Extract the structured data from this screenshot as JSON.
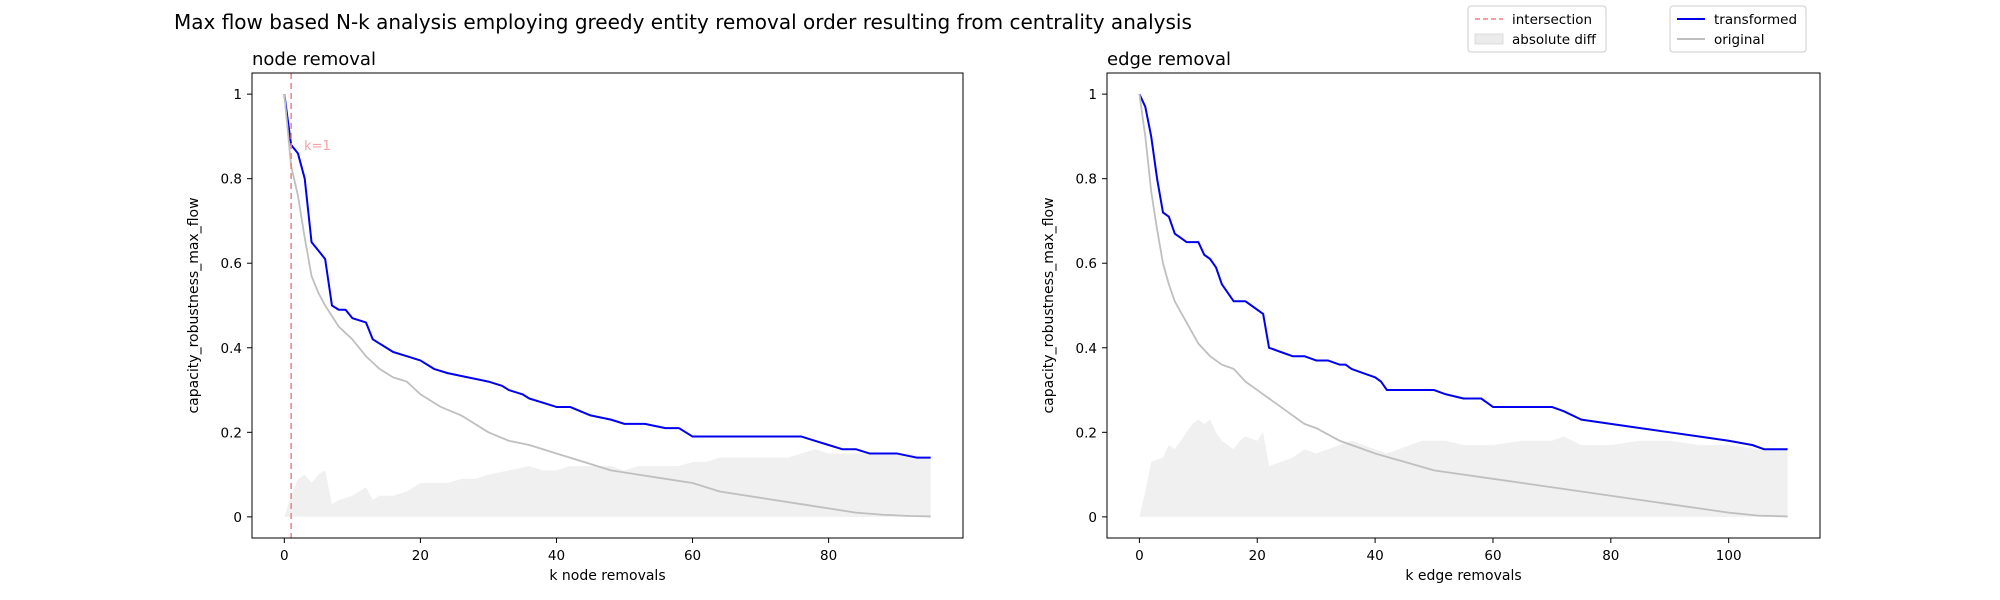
{
  "title": "Max flow based N-k analysis employing greedy entity removal order resulting from centrality analysis",
  "legend_left": {
    "placement": "top-center",
    "items": [
      {
        "label": "intersection",
        "style": "dashed-line",
        "color": "#f08080"
      },
      {
        "label": "absolute diff",
        "style": "patch",
        "color": "#ebebeb"
      }
    ]
  },
  "legend_right": {
    "placement": "top-right",
    "items": [
      {
        "label": "transformed",
        "style": "line",
        "color": "#0000ee"
      },
      {
        "label": "original",
        "style": "line",
        "color": "#bfbfbf"
      }
    ]
  },
  "colors": {
    "transformed": "#0000ee",
    "original": "#bfbfbf",
    "absolute_diff": "#f0f0f0",
    "intersection": "#f08080"
  },
  "chart_data": [
    {
      "type": "line",
      "title": "node removal",
      "xlabel": "k node removals",
      "ylabel": "capacity_robustness_max_flow",
      "xlim": [
        -4.75,
        99.75
      ],
      "ylim": [
        -0.05,
        1.05
      ],
      "xticks": [
        0,
        20,
        40,
        60,
        80
      ],
      "yticks": [
        0.0,
        0.2,
        0.4,
        0.6,
        0.8,
        1.0
      ],
      "grid": false,
      "annotation": {
        "text": "k=1",
        "x": 1
      },
      "series": [
        {
          "name": "transformed",
          "color": "#0000ee",
          "x": [
            0,
            1,
            2,
            3,
            4,
            5,
            6,
            7,
            8,
            9,
            10,
            12,
            13,
            14,
            16,
            18,
            20,
            22,
            24,
            27,
            30,
            32,
            33,
            35,
            36,
            38,
            40,
            42,
            45,
            48,
            50,
            53,
            56,
            58,
            59,
            60,
            63,
            65,
            70,
            73,
            76,
            78,
            80,
            82,
            84,
            86,
            90,
            93,
            95
          ],
          "y": [
            1.0,
            0.88,
            0.86,
            0.8,
            0.65,
            0.63,
            0.61,
            0.5,
            0.49,
            0.49,
            0.47,
            0.46,
            0.42,
            0.41,
            0.39,
            0.38,
            0.37,
            0.35,
            0.34,
            0.33,
            0.32,
            0.31,
            0.3,
            0.29,
            0.28,
            0.27,
            0.26,
            0.26,
            0.24,
            0.23,
            0.22,
            0.22,
            0.21,
            0.21,
            0.2,
            0.19,
            0.19,
            0.19,
            0.19,
            0.19,
            0.19,
            0.18,
            0.17,
            0.16,
            0.16,
            0.15,
            0.15,
            0.14,
            0.14
          ]
        },
        {
          "name": "original",
          "color": "#bfbfbf",
          "x": [
            0,
            1,
            2,
            3,
            4,
            5,
            6,
            8,
            10,
            12,
            14,
            16,
            18,
            20,
            23,
            26,
            30,
            33,
            36,
            40,
            44,
            48,
            52,
            56,
            60,
            64,
            68,
            72,
            76,
            80,
            84,
            88,
            92,
            95
          ],
          "y": [
            1.0,
            0.83,
            0.76,
            0.66,
            0.57,
            0.53,
            0.5,
            0.45,
            0.42,
            0.38,
            0.35,
            0.33,
            0.32,
            0.29,
            0.26,
            0.24,
            0.2,
            0.18,
            0.17,
            0.15,
            0.13,
            0.11,
            0.1,
            0.09,
            0.08,
            0.06,
            0.05,
            0.04,
            0.03,
            0.02,
            0.01,
            0.005,
            0.002,
            0.001
          ]
        }
      ],
      "absolute_diff": {
        "name": "absolute diff",
        "color": "#f0f0f0",
        "x": [
          0,
          1,
          2,
          3,
          4,
          5,
          6,
          7,
          8,
          10,
          12,
          13,
          14,
          16,
          18,
          20,
          22,
          24,
          26,
          28,
          30,
          33,
          36,
          38,
          40,
          42,
          44,
          46,
          48,
          50,
          52,
          54,
          56,
          58,
          60,
          62,
          64,
          66,
          68,
          70,
          72,
          74,
          76,
          78,
          80,
          82,
          84,
          86,
          88,
          90,
          92,
          94,
          95
        ],
        "y": [
          0.0,
          0.05,
          0.09,
          0.1,
          0.08,
          0.1,
          0.11,
          0.03,
          0.04,
          0.05,
          0.07,
          0.04,
          0.05,
          0.05,
          0.06,
          0.08,
          0.08,
          0.08,
          0.09,
          0.09,
          0.1,
          0.11,
          0.12,
          0.11,
          0.11,
          0.12,
          0.12,
          0.12,
          0.12,
          0.11,
          0.12,
          0.12,
          0.12,
          0.12,
          0.13,
          0.13,
          0.14,
          0.14,
          0.14,
          0.14,
          0.14,
          0.14,
          0.15,
          0.16,
          0.15,
          0.15,
          0.15,
          0.15,
          0.15,
          0.15,
          0.15,
          0.14,
          0.14
        ]
      }
    },
    {
      "type": "line",
      "title": "edge removal",
      "xlabel": "k edge removals",
      "ylabel": "capacity_robustness_max_flow",
      "xlim": [
        -5.5,
        115.5
      ],
      "ylim": [
        -0.05,
        1.05
      ],
      "xticks": [
        0,
        20,
        40,
        60,
        80,
        100
      ],
      "yticks": [
        0.0,
        0.2,
        0.4,
        0.6,
        0.8,
        1.0
      ],
      "grid": false,
      "series": [
        {
          "name": "transformed",
          "color": "#0000ee",
          "x": [
            0,
            1,
            2,
            3,
            4,
            5,
            6,
            7,
            8,
            10,
            11,
            12,
            13,
            14,
            16,
            18,
            19,
            21,
            22,
            24,
            26,
            28,
            30,
            32,
            34,
            35,
            36,
            38,
            40,
            41,
            42,
            45,
            50,
            52,
            55,
            58,
            59,
            60,
            65,
            70,
            72,
            75,
            80,
            85,
            90,
            95,
            100,
            104,
            106,
            110
          ],
          "y": [
            1.0,
            0.97,
            0.9,
            0.8,
            0.72,
            0.71,
            0.67,
            0.66,
            0.65,
            0.65,
            0.62,
            0.61,
            0.59,
            0.55,
            0.51,
            0.51,
            0.5,
            0.48,
            0.4,
            0.39,
            0.38,
            0.38,
            0.37,
            0.37,
            0.36,
            0.36,
            0.35,
            0.34,
            0.33,
            0.32,
            0.3,
            0.3,
            0.3,
            0.29,
            0.28,
            0.28,
            0.27,
            0.26,
            0.26,
            0.26,
            0.25,
            0.23,
            0.22,
            0.21,
            0.2,
            0.19,
            0.18,
            0.17,
            0.16,
            0.16
          ]
        },
        {
          "name": "original",
          "color": "#bfbfbf",
          "x": [
            0,
            1,
            2,
            3,
            4,
            5,
            6,
            8,
            10,
            12,
            14,
            16,
            18,
            20,
            22,
            25,
            28,
            30,
            34,
            38,
            40,
            45,
            50,
            55,
            60,
            65,
            70,
            75,
            80,
            85,
            90,
            95,
            100,
            105,
            110
          ],
          "y": [
            1.0,
            0.9,
            0.77,
            0.68,
            0.6,
            0.55,
            0.51,
            0.46,
            0.41,
            0.38,
            0.36,
            0.35,
            0.32,
            0.3,
            0.28,
            0.25,
            0.22,
            0.21,
            0.18,
            0.16,
            0.15,
            0.13,
            0.11,
            0.1,
            0.09,
            0.08,
            0.07,
            0.06,
            0.05,
            0.04,
            0.03,
            0.02,
            0.01,
            0.003,
            0.001
          ]
        }
      ],
      "absolute_diff": {
        "name": "absolute diff",
        "color": "#f0f0f0",
        "x": [
          0,
          1,
          2,
          4,
          5,
          6,
          7,
          8,
          9,
          10,
          11,
          12,
          13,
          14,
          15,
          16,
          17,
          18,
          20,
          21,
          22,
          24,
          26,
          28,
          30,
          32,
          34,
          36,
          38,
          40,
          42,
          44,
          46,
          48,
          50,
          52,
          55,
          58,
          60,
          65,
          70,
          72,
          75,
          80,
          85,
          90,
          95,
          100,
          105,
          110
        ],
        "y": [
          0.0,
          0.06,
          0.13,
          0.14,
          0.17,
          0.16,
          0.18,
          0.2,
          0.22,
          0.23,
          0.22,
          0.23,
          0.2,
          0.18,
          0.17,
          0.16,
          0.18,
          0.19,
          0.18,
          0.2,
          0.12,
          0.13,
          0.14,
          0.16,
          0.15,
          0.16,
          0.17,
          0.18,
          0.17,
          0.16,
          0.15,
          0.16,
          0.17,
          0.18,
          0.18,
          0.18,
          0.17,
          0.17,
          0.17,
          0.18,
          0.18,
          0.19,
          0.17,
          0.17,
          0.18,
          0.18,
          0.17,
          0.17,
          0.16,
          0.16
        ]
      }
    }
  ]
}
